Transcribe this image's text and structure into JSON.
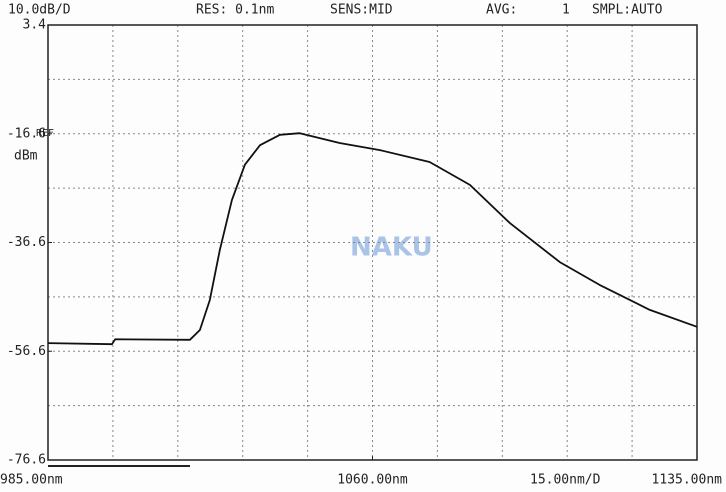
{
  "chart_data": {
    "type": "line",
    "scale_label": "10.0dB/D",
    "resolution": "RES: 0.1nm",
    "sensitivity": "SENS:MID",
    "average_label": "AVG:",
    "average": "1",
    "sampling": "SMPL:AUTO",
    "ref_label": "REF",
    "y_unit": "dBm",
    "x_span_label": "15.00nm/D",
    "watermark": "NAKU",
    "x": [
      985,
      999.8,
      1000.5,
      1017.8,
      1020.1,
      1022.4,
      1024.7,
      1027.5,
      1030.5,
      1034,
      1038.6,
      1043.2,
      1052.4,
      1061.7,
      1073.2,
      1082.5,
      1091.7,
      1103.3,
      1112.5,
      1124.1,
      1135
    ],
    "values": [
      -55.1,
      -55.3,
      -54.4,
      -54.5,
      -52.7,
      -47.2,
      -38,
      -28.8,
      -22.3,
      -18.7,
      -16.8,
      -16.5,
      -18.3,
      -19.6,
      -21.8,
      -26,
      -33,
      -40.2,
      -44.4,
      -49,
      -52.1
    ],
    "color": "#111111",
    "xlim": [
      985,
      1135
    ],
    "xticks": [
      {
        "value": 985,
        "label": "985.00nm"
      },
      {
        "value": 1060,
        "label": "1060.00nm"
      },
      {
        "value": 1135,
        "label": "1135.00nm"
      }
    ],
    "ylim": [
      -76.6,
      3.4
    ],
    "yticks": [
      -76.6,
      -56.6,
      -36.6,
      -16.6,
      3.4
    ],
    "grid": true
  }
}
